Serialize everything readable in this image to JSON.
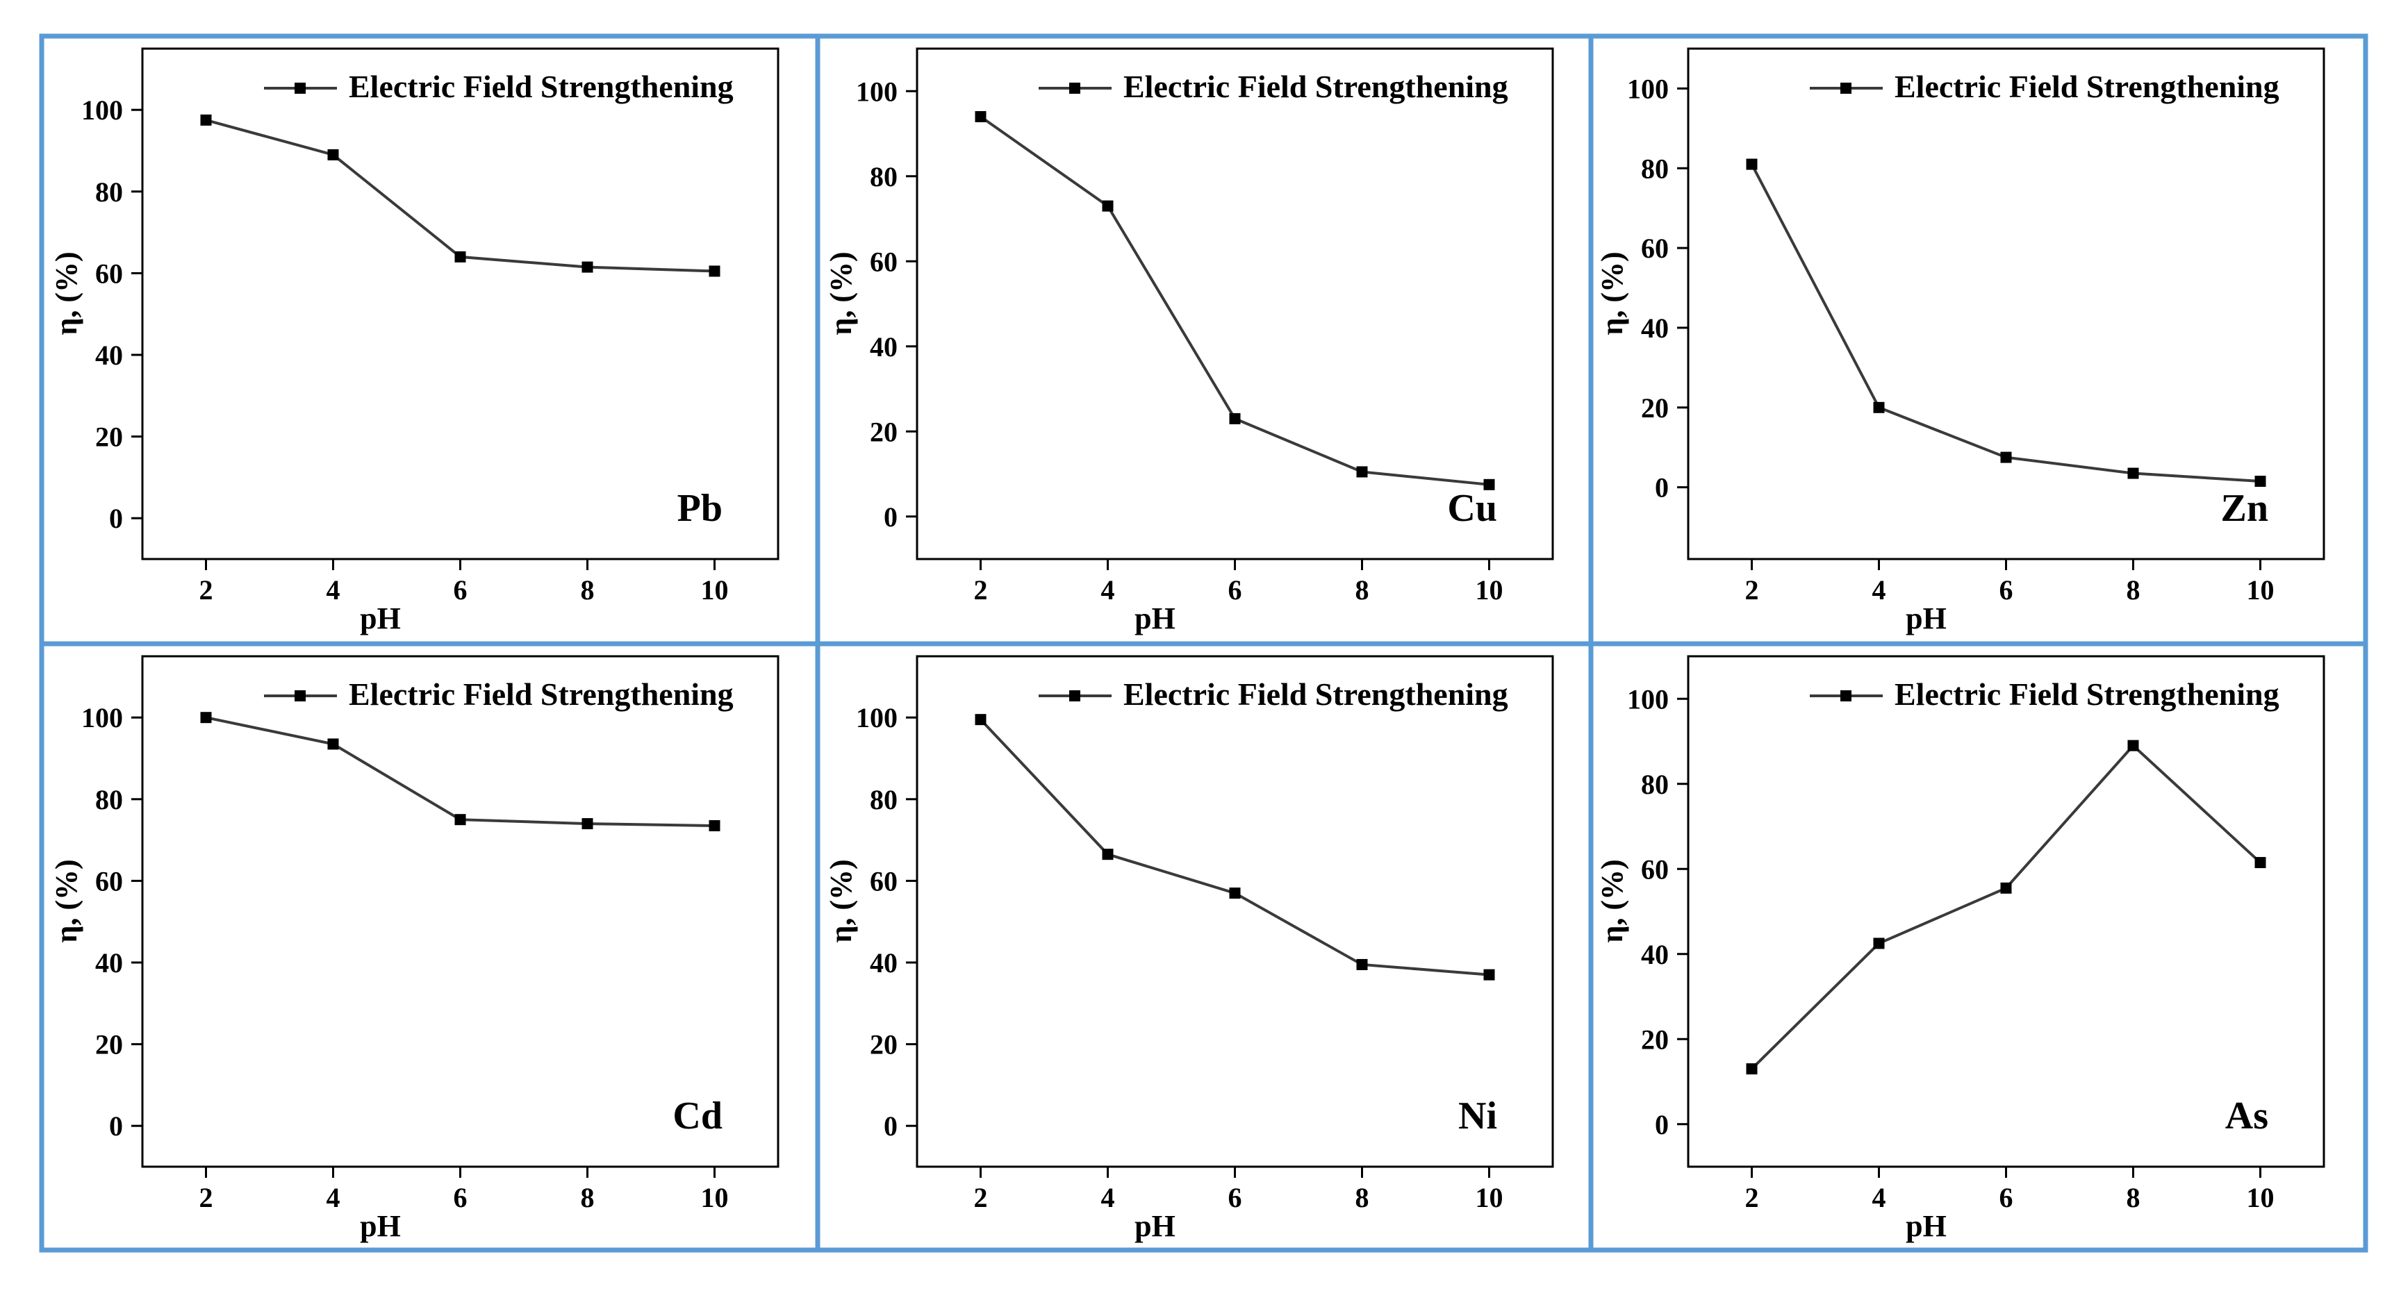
{
  "chart_data": [
    {
      "type": "line",
      "element_label": "Pb",
      "legend": "Electric Field Strengthening",
      "xlabel": "pH",
      "ylabel": "η, (%)",
      "x": [
        2,
        4,
        6,
        8,
        10
      ],
      "y": [
        97.5,
        89,
        64,
        61.5,
        60.5
      ],
      "xticks": [
        2,
        4,
        6,
        8,
        10
      ],
      "yticks": [
        0,
        20,
        40,
        60,
        80,
        100
      ],
      "xlim": [
        1,
        11
      ],
      "ylim": [
        -10,
        115
      ]
    },
    {
      "type": "line",
      "element_label": "Cu",
      "legend": "Electric Field Strengthening",
      "xlabel": "pH",
      "ylabel": "η, (%)",
      "x": [
        2,
        4,
        6,
        8,
        10
      ],
      "y": [
        94,
        73,
        23,
        10.5,
        7.5
      ],
      "xticks": [
        2,
        4,
        6,
        8,
        10
      ],
      "yticks": [
        0,
        20,
        40,
        60,
        80,
        100
      ],
      "xlim": [
        1,
        11
      ],
      "ylim": [
        -10,
        110
      ]
    },
    {
      "type": "line",
      "element_label": "Zn",
      "legend": "Electric Field Strengthening",
      "xlabel": "pH",
      "ylabel": "η, (%)",
      "x": [
        2,
        4,
        6,
        8,
        10
      ],
      "y": [
        81,
        20,
        7.5,
        3.5,
        1.5
      ],
      "xticks": [
        2,
        4,
        6,
        8,
        10
      ],
      "yticks": [
        0,
        20,
        40,
        60,
        80,
        100
      ],
      "xlim": [
        1,
        11
      ],
      "ylim": [
        -18,
        110
      ]
    },
    {
      "type": "line",
      "element_label": "Cd",
      "legend": "Electric Field Strengthening",
      "xlabel": "pH",
      "ylabel": "η, (%)",
      "x": [
        2,
        4,
        6,
        8,
        10
      ],
      "y": [
        100,
        93.5,
        75,
        74,
        73.5
      ],
      "xticks": [
        2,
        4,
        6,
        8,
        10
      ],
      "yticks": [
        0,
        20,
        40,
        60,
        80,
        100
      ],
      "xlim": [
        1,
        11
      ],
      "ylim": [
        -10,
        115
      ]
    },
    {
      "type": "line",
      "element_label": "Ni",
      "legend": "Electric Field Strengthening",
      "xlabel": "pH",
      "ylabel": "η, (%)",
      "x": [
        2,
        4,
        6,
        8,
        10
      ],
      "y": [
        99.5,
        66.5,
        57,
        39.5,
        37
      ],
      "xticks": [
        2,
        4,
        6,
        8,
        10
      ],
      "yticks": [
        0,
        20,
        40,
        60,
        80,
        100
      ],
      "xlim": [
        1,
        11
      ],
      "ylim": [
        -10,
        115
      ]
    },
    {
      "type": "line",
      "element_label": "As",
      "legend": "Electric Field Strengthening",
      "xlabel": "pH",
      "ylabel": "η, (%)",
      "x": [
        2,
        4,
        6,
        8,
        10
      ],
      "y": [
        13,
        42.5,
        55.5,
        89,
        61.5
      ],
      "xticks": [
        2,
        4,
        6,
        8,
        10
      ],
      "yticks": [
        0,
        20,
        40,
        60,
        80,
        100
      ],
      "xlim": [
        1,
        11
      ],
      "ylim": [
        -10,
        110
      ]
    }
  ]
}
